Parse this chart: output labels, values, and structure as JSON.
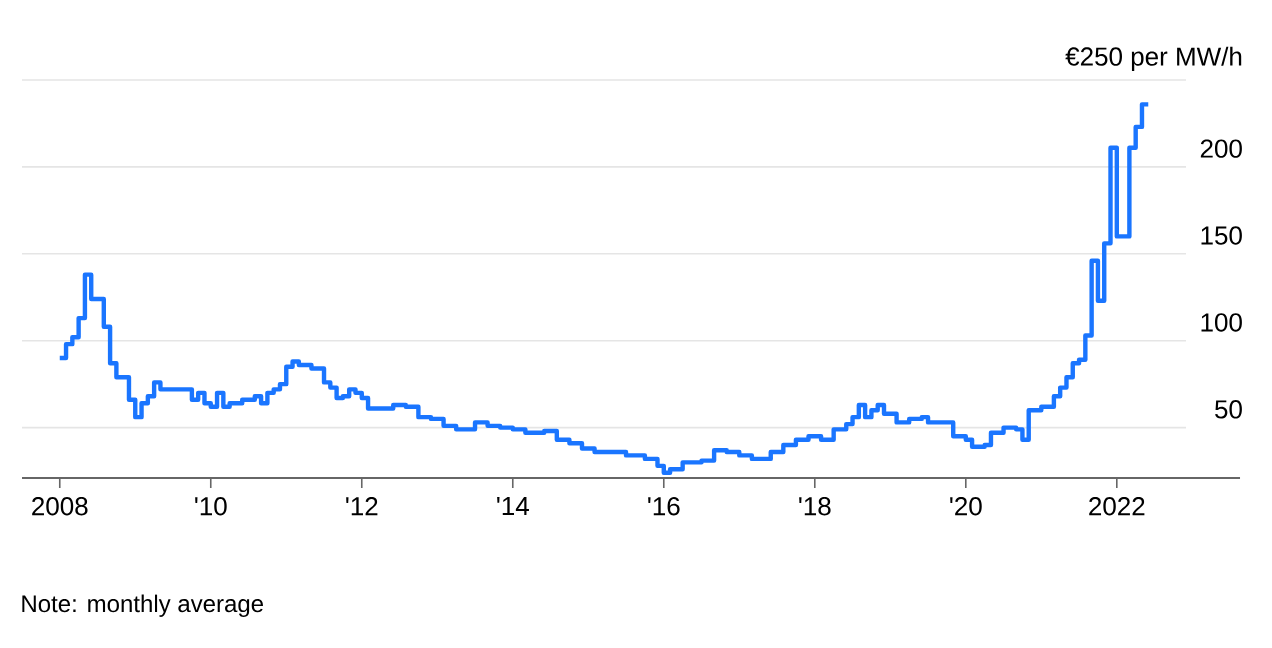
{
  "chart_data": {
    "type": "step",
    "color": "#1a75ff",
    "x": [
      "2008-01",
      "2008-02",
      "2008-03",
      "2008-04",
      "2008-05",
      "2008-06",
      "2008-08",
      "2008-09",
      "2008-10",
      "2008-12",
      "2009-01",
      "2009-02",
      "2009-03",
      "2009-04",
      "2009-05",
      "2009-10",
      "2009-11",
      "2009-12",
      "2010-01",
      "2010-02",
      "2010-03",
      "2010-04",
      "2010-06",
      "2010-08",
      "2010-09",
      "2010-10",
      "2010-11",
      "2010-12",
      "2011-01",
      "2011-02",
      "2011-03",
      "2011-05",
      "2011-07",
      "2011-08",
      "2011-09",
      "2011-10",
      "2011-11",
      "2011-12",
      "2012-01",
      "2012-02",
      "2012-06",
      "2012-08",
      "2012-10",
      "2012-12",
      "2013-02",
      "2013-04",
      "2013-07",
      "2013-09",
      "2013-11",
      "2014-01",
      "2014-03",
      "2014-06",
      "2014-08",
      "2014-10",
      "2014-12",
      "2015-02",
      "2015-07",
      "2015-10",
      "2015-12",
      "2016-01",
      "2016-02",
      "2016-04",
      "2016-07",
      "2016-09",
      "2016-11",
      "2017-01",
      "2017-03",
      "2017-06",
      "2017-08",
      "2017-10",
      "2017-12",
      "2018-02",
      "2018-04",
      "2018-06",
      "2018-07",
      "2018-08",
      "2018-09",
      "2018-10",
      "2018-11",
      "2018-12",
      "2019-02",
      "2019-04",
      "2019-06",
      "2019-07",
      "2019-11",
      "2020-01",
      "2020-02",
      "2020-04",
      "2020-05",
      "2020-07",
      "2020-09",
      "2020-10",
      "2020-11",
      "2021-01",
      "2021-03",
      "2021-04",
      "2021-05",
      "2021-06",
      "2021-07",
      "2021-08",
      "2021-09",
      "2021-10",
      "2021-11",
      "2021-12",
      "2022-01",
      "2022-03",
      "2022-04",
      "2022-05",
      "2022-06"
    ],
    "values": [
      90,
      98,
      102,
      113,
      138,
      124,
      108,
      87,
      79,
      66,
      56,
      64,
      68,
      76,
      72,
      66,
      70,
      64,
      62,
      70,
      62,
      64,
      66,
      68,
      64,
      70,
      72,
      75,
      85,
      88,
      86,
      84,
      76,
      73,
      67,
      68,
      72,
      70,
      67,
      61,
      63,
      62,
      56,
      55,
      51,
      49,
      53,
      51,
      50,
      49,
      47,
      48,
      43,
      41,
      38,
      36,
      34,
      32,
      28,
      24,
      26,
      30,
      31,
      37,
      36,
      34,
      32,
      36,
      40,
      43,
      45,
      43,
      49,
      52,
      56,
      63,
      56,
      60,
      63,
      58,
      53,
      55,
      56,
      53,
      45,
      43,
      39,
      40,
      47,
      50,
      49,
      43,
      60,
      62,
      68,
      73,
      79,
      87,
      89,
      103,
      146,
      123,
      156,
      211,
      160,
      211,
      223,
      236,
      236
    ],
    "xlim": [
      "2007-07",
      "2022-12"
    ],
    "xticks": [
      {
        "value": "2008-01",
        "label": "2008"
      },
      {
        "value": "2010-01",
        "label": "'10"
      },
      {
        "value": "2012-01",
        "label": "'12"
      },
      {
        "value": "2014-01",
        "label": "'14"
      },
      {
        "value": "2016-01",
        "label": "'16"
      },
      {
        "value": "2018-01",
        "label": "'18"
      },
      {
        "value": "2020-01",
        "label": "'20"
      },
      {
        "value": "2022-01",
        "label": "2022"
      }
    ],
    "ylim": [
      21,
      250
    ],
    "yticks": [
      50,
      100,
      150,
      200,
      {
        "value": 250,
        "label": "€250 per MW/h"
      }
    ],
    "grid": "y",
    "annotations": [
      "Note: monthly average"
    ]
  }
}
